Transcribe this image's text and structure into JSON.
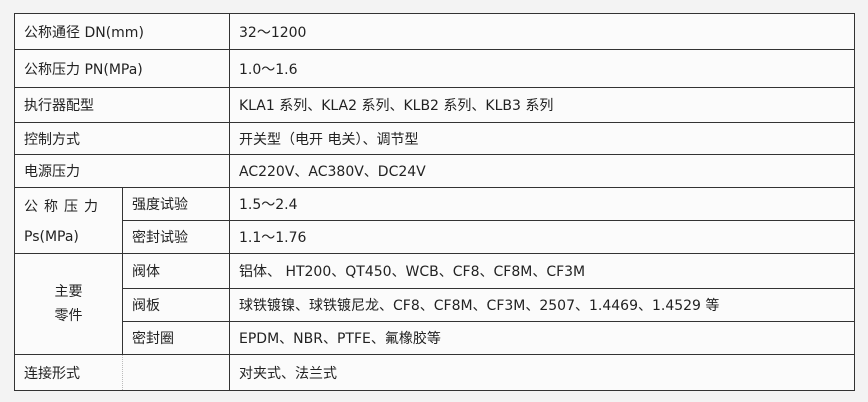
{
  "rows": [
    {
      "label": "公称通径 DN(mm)",
      "value": "32～1200"
    },
    {
      "label": "公称压力 PN(MPa)",
      "value": "1.0～1.6"
    },
    {
      "label": "执行器配型",
      "value": "KLA1 系列、KLA2 系列、KLB2 系列、KLB3 系列"
    },
    {
      "label": "控制方式",
      "value": "开关型（电开  电关）、调节型"
    },
    {
      "label": "电源压力",
      "value": "AC220V、AC380V、DC24V"
    }
  ],
  "test_pressure": {
    "label_line1": "公称压力",
    "label_line2": "Ps(MPa)",
    "items": [
      {
        "label": "强度试验",
        "value": "1.5～2.4"
      },
      {
        "label": "密封试验",
        "value": "1.1～1.76"
      }
    ]
  },
  "parts": {
    "label_line1": "主要",
    "label_line2": "零件",
    "items": [
      {
        "label": "阀体",
        "value": "铝体、 HT200、QT450、WCB、CF8、CF8M、CF3M"
      },
      {
        "label": "阀板",
        "value": "球铁镀镍、球铁镀尼龙、CF8、CF8M、CF3M、2507、1.4469、1.4529 等"
      },
      {
        "label": "密封圈",
        "value": "EPDM、NBR、PTFE、氟橡胶等"
      }
    ]
  },
  "connection": {
    "label": "连接形式",
    "value": "对夹式、法兰式"
  }
}
